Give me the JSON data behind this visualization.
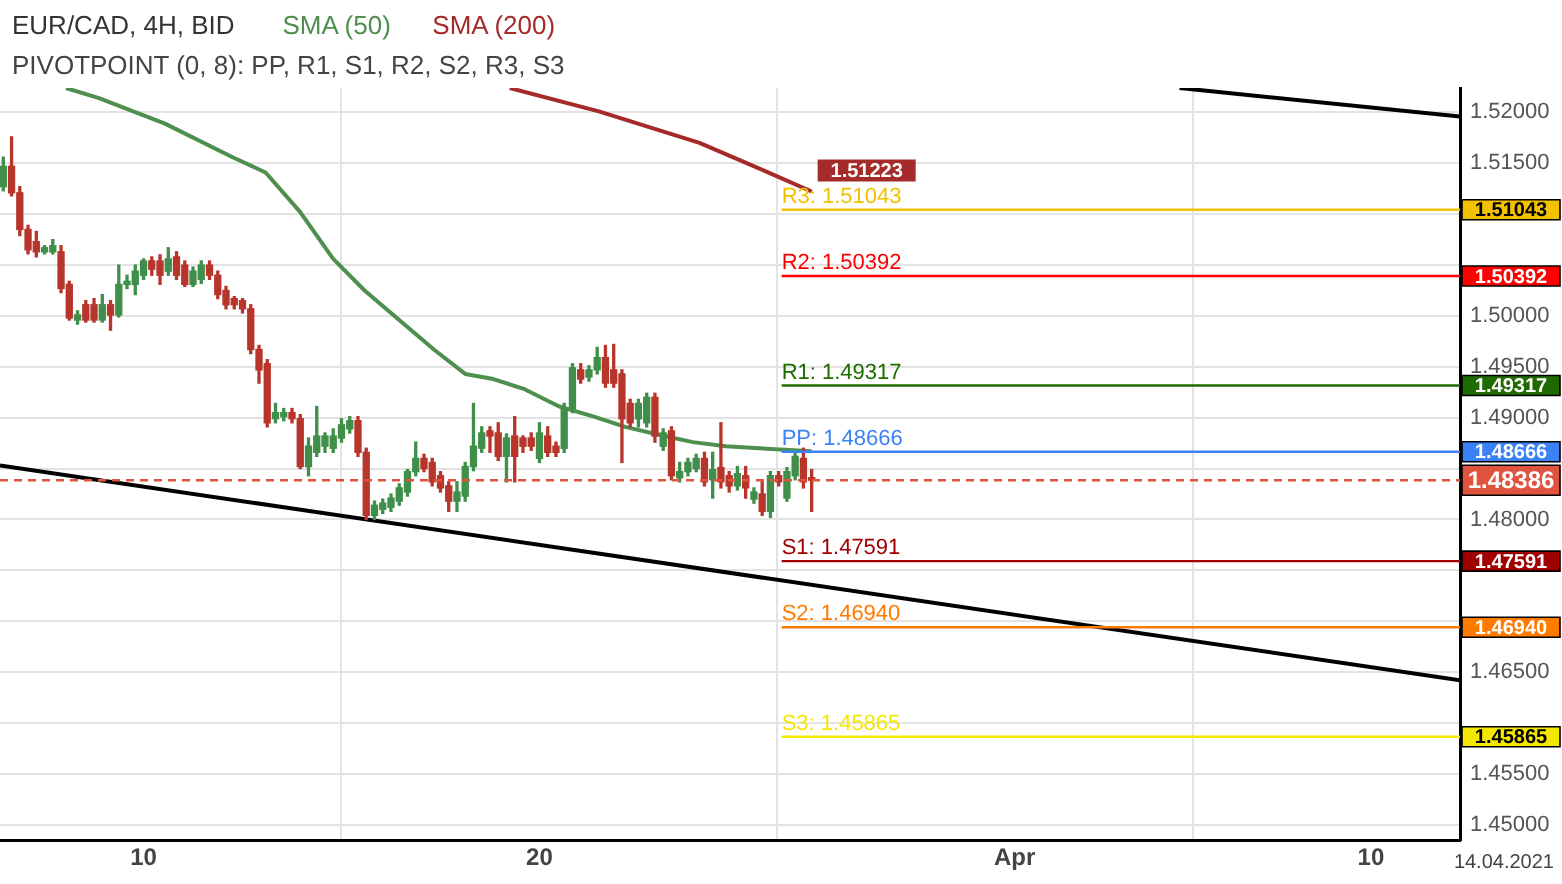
{
  "chart_data": {
    "type": "candlestick",
    "title": "EUR/CAD, 4H, BID",
    "subtitle": "PIVOTPOINT (0, 8): PP, R1, S1, R2, S2, R3, S3",
    "x": [
      "2021-03-06T11:00",
      "2021-03-06T16:00",
      "2021-03-06T21:00",
      "2021-03-07T02:00",
      "2021-03-07T07:00",
      "2021-03-07T12:00",
      "2021-03-07T17:00",
      "2021-03-07T22:00",
      "2021-03-08T03:00",
      "2021-03-08T08:00",
      "2021-03-08T13:00",
      "2021-03-08T18:00",
      "2021-03-08T23:00",
      "2021-03-09T04:00",
      "2021-03-09T09:00",
      "2021-03-09T14:00",
      "2021-03-09T19:00",
      "2021-03-10T00:00",
      "2021-03-10T05:00",
      "2021-03-10T10:00",
      "2021-03-10T15:00",
      "2021-03-10T20:00",
      "2021-03-11T01:00",
      "2021-03-11T06:00",
      "2021-03-11T11:00",
      "2021-03-11T16:00",
      "2021-03-11T21:00",
      "2021-03-12T02:00",
      "2021-03-12T07:00",
      "2021-03-12T12:00",
      "2021-03-12T17:00",
      "2021-03-12T22:00",
      "2021-03-13T03:00",
      "2021-03-13T08:00",
      "2021-03-13T13:00",
      "2021-03-13T18:00",
      "2021-03-13T23:00",
      "2021-03-14T04:00",
      "2021-03-14T09:00",
      "2021-03-14T14:00",
      "2021-03-14T19:00",
      "2021-03-15T00:00",
      "2021-03-15T05:00",
      "2021-03-15T10:00",
      "2021-03-15T15:00",
      "2021-03-15T20:00",
      "2021-03-16T01:00",
      "2021-03-16T06:00",
      "2021-03-16T11:00",
      "2021-03-16T16:00",
      "2021-03-16T21:00",
      "2021-03-17T02:00",
      "2021-03-17T07:00",
      "2021-03-17T12:00",
      "2021-03-17T17:00",
      "2021-03-17T22:00",
      "2021-03-18T03:00",
      "2021-03-18T08:00",
      "2021-03-18T13:00",
      "2021-03-18T18:00",
      "2021-03-18T23:00",
      "2021-03-19T04:00",
      "2021-03-19T09:00",
      "2021-03-19T14:00",
      "2021-03-19T19:00",
      "2021-03-20T00:00",
      "2021-03-20T05:00",
      "2021-03-20T10:00",
      "2021-03-20T15:00",
      "2021-03-20T20:00",
      "2021-03-21T01:00",
      "2021-03-21T06:00",
      "2021-03-21T11:00",
      "2021-03-21T16:00",
      "2021-03-21T21:00",
      "2021-03-22T02:00",
      "2021-03-22T07:00",
      "2021-03-22T12:00",
      "2021-03-22T17:00",
      "2021-03-22T22:00",
      "2021-03-23T03:00",
      "2021-03-23T08:00",
      "2021-03-23T13:00",
      "2021-03-23T18:00",
      "2021-03-23T23:00",
      "2021-03-24T04:00",
      "2021-03-24T09:00",
      "2021-03-24T14:00",
      "2021-03-24T19:00",
      "2021-03-25T00:00",
      "2021-03-25T05:00",
      "2021-03-25T10:00",
      "2021-03-25T15:00",
      "2021-03-25T20:00",
      "2021-03-26T01:00",
      "2021-03-26T06:00",
      "2021-03-26T11:00",
      "2021-03-26T16:00",
      "2021-03-26T21:00"
    ],
    "ohlc": [
      [
        1.5127,
        1.5156,
        1.5123,
        1.5147
      ],
      [
        1.5147,
        1.5176,
        1.5118,
        1.5121
      ],
      [
        1.5121,
        1.5127,
        1.5079,
        1.5085
      ],
      [
        1.5085,
        1.5089,
        1.5061,
        1.5065
      ],
      [
        1.5073,
        1.5083,
        1.5058,
        1.5063
      ],
      [
        1.5063,
        1.5069,
        1.5061,
        1.5067
      ],
      [
        1.5063,
        1.5075,
        1.5061,
        1.5069
      ],
      [
        1.5063,
        1.5069,
        1.5023,
        1.5027
      ],
      [
        1.5031,
        1.5034,
        1.4996,
        1.4998
      ],
      [
        1.4996,
        1.5005,
        1.4992,
        1.5001
      ],
      [
        1.5011,
        1.5015,
        1.4994,
        1.4996
      ],
      [
        1.5011,
        1.5017,
        1.4994,
        1.4996
      ],
      [
        1.4996,
        1.5021,
        1.4994,
        1.5011
      ],
      [
        1.5011,
        1.5015,
        1.4986,
        1.5001
      ],
      [
        1.5001,
        1.505,
        1.4999,
        1.5031
      ],
      [
        1.5031,
        1.504,
        1.5027,
        1.5034
      ],
      [
        1.5031,
        1.505,
        1.5021,
        1.5044
      ],
      [
        1.504,
        1.5056,
        1.5036,
        1.5054
      ],
      [
        1.5054,
        1.5058,
        1.504,
        1.5046
      ],
      [
        1.5054,
        1.506,
        1.5031,
        1.504
      ],
      [
        1.5044,
        1.5067,
        1.504,
        1.5056
      ],
      [
        1.5058,
        1.5063,
        1.5036,
        1.504
      ],
      [
        1.505,
        1.5054,
        1.5029,
        1.5031
      ],
      [
        1.5031,
        1.5048,
        1.5029,
        1.5044
      ],
      [
        1.5036,
        1.5054,
        1.5032,
        1.505
      ],
      [
        1.505,
        1.5054,
        1.5036,
        1.504
      ],
      [
        1.504,
        1.5044,
        1.5017,
        1.5021
      ],
      [
        1.5025,
        1.5029,
        1.5007,
        1.5011
      ],
      [
        1.5017,
        1.5019,
        1.5007,
        1.5011
      ],
      [
        1.5015,
        1.5017,
        1.5003,
        1.5007
      ],
      [
        1.5007,
        1.5011,
        1.4963,
        1.4967
      ],
      [
        1.4967,
        1.4971,
        1.4934,
        1.4947
      ],
      [
        1.4953,
        1.4957,
        1.4891,
        1.4895
      ],
      [
        1.4899,
        1.4914,
        1.4895,
        1.4905
      ],
      [
        1.4901,
        1.4909,
        1.4897,
        1.4905
      ],
      [
        1.4905,
        1.4909,
        1.4895,
        1.4899
      ],
      [
        1.4899,
        1.4903,
        1.485,
        1.4852
      ],
      [
        1.4852,
        1.488,
        1.4843,
        1.4872
      ],
      [
        1.4866,
        1.4911,
        1.4862,
        1.4882
      ],
      [
        1.4872,
        1.4885,
        1.4866,
        1.4882
      ],
      [
        1.487,
        1.4889,
        1.4866,
        1.4882
      ],
      [
        1.488,
        1.4899,
        1.4876,
        1.4893
      ],
      [
        1.4889,
        1.4901,
        1.4885,
        1.4897
      ],
      [
        1.4897,
        1.4901,
        1.4862,
        1.4866
      ],
      [
        1.4866,
        1.487,
        1.48,
        1.4804
      ],
      [
        1.4804,
        1.4818,
        1.48,
        1.4814
      ],
      [
        1.481,
        1.482,
        1.4806,
        1.4816
      ],
      [
        1.4812,
        1.4825,
        1.4808,
        1.4821
      ],
      [
        1.4818,
        1.4835,
        1.4814,
        1.4831
      ],
      [
        1.4827,
        1.4849,
        1.4823,
        1.4847
      ],
      [
        1.4847,
        1.4876,
        1.4843,
        1.486
      ],
      [
        1.486,
        1.4864,
        1.4847,
        1.485
      ],
      [
        1.4856,
        1.486,
        1.4833,
        1.4837
      ],
      [
        1.4843,
        1.4847,
        1.4827,
        1.4831
      ],
      [
        1.4833,
        1.4837,
        1.4808,
        1.4818
      ],
      [
        1.4818,
        1.4837,
        1.4808,
        1.4827
      ],
      [
        1.4823,
        1.4856,
        1.4818,
        1.4852
      ],
      [
        1.4852,
        1.4914,
        1.4848,
        1.4872
      ],
      [
        1.487,
        1.4891,
        1.4866,
        1.4885
      ],
      [
        1.4887,
        1.4891,
        1.4866,
        1.4882
      ],
      [
        1.4885,
        1.4895,
        1.4858,
        1.4862
      ],
      [
        1.4862,
        1.4884,
        1.4837,
        1.488
      ],
      [
        1.4882,
        1.4901,
        1.4837,
        1.4862
      ],
      [
        1.488,
        1.4882,
        1.4866,
        1.4872
      ],
      [
        1.488,
        1.4885,
        1.4868,
        1.4872
      ],
      [
        1.486,
        1.4895,
        1.4856,
        1.4885
      ],
      [
        1.4882,
        1.4891,
        1.4862,
        1.4866
      ],
      [
        1.4872,
        1.4876,
        1.4862,
        1.4866
      ],
      [
        1.487,
        1.4914,
        1.4866,
        1.4909
      ],
      [
        1.4909,
        1.4953,
        1.4905,
        1.4949
      ],
      [
        1.4947,
        1.4953,
        1.4934,
        1.4938
      ],
      [
        1.494,
        1.4951,
        1.4936,
        1.4947
      ],
      [
        1.4947,
        1.4969,
        1.4943,
        1.4959
      ],
      [
        1.4959,
        1.4971,
        1.493,
        1.4934
      ],
      [
        1.4947,
        1.4972,
        1.493,
        1.4934
      ],
      [
        1.4943,
        1.4947,
        1.4856,
        1.4899
      ],
      [
        1.4914,
        1.4918,
        1.4891,
        1.4895
      ],
      [
        1.4899,
        1.4918,
        1.4891,
        1.4914
      ],
      [
        1.4895,
        1.4924,
        1.4891,
        1.492
      ],
      [
        1.492,
        1.4924,
        1.4876,
        1.4882
      ],
      [
        1.4872,
        1.4889,
        1.4868,
        1.4885
      ],
      [
        1.4887,
        1.4891,
        1.4839,
        1.4843
      ],
      [
        1.4841,
        1.4856,
        1.4837,
        1.4847
      ],
      [
        1.4847,
        1.486,
        1.4843,
        1.4856
      ],
      [
        1.485,
        1.4864,
        1.4847,
        1.486
      ],
      [
        1.486,
        1.4866,
        1.4833,
        1.4837
      ],
      [
        1.4839,
        1.4866,
        1.4821,
        1.4849
      ],
      [
        1.4851,
        1.4895,
        1.4831,
        1.4837
      ],
      [
        1.4843,
        1.4847,
        1.4827,
        1.4833
      ],
      [
        1.4833,
        1.4852,
        1.4829,
        1.4845
      ],
      [
        1.4843,
        1.4852,
        1.4821,
        1.4831
      ],
      [
        1.482,
        1.4831,
        1.4816,
        1.4827
      ],
      [
        1.4825,
        1.4837,
        1.4804,
        1.4808
      ],
      [
        1.4808,
        1.4847,
        1.4802,
        1.4843
      ],
      [
        1.4843,
        1.4847,
        1.4833,
        1.4837
      ],
      [
        1.4821,
        1.4851,
        1.4818,
        1.4847
      ],
      [
        1.4843,
        1.4866,
        1.4839,
        1.4862
      ],
      [
        1.486,
        1.487,
        1.4831,
        1.4837
      ],
      [
        1.4841,
        1.4849,
        1.4808,
        1.48386
      ]
    ],
    "series": [
      {
        "name": "SMA (50)",
        "type": "line",
        "color": "#4e8f4e",
        "x": [
          "2021-03-08T01:00",
          "2021-03-08T21:00",
          "2021-03-10T13:00",
          "2021-03-12T06:00",
          "2021-03-13T02:00",
          "2021-03-13T23:00",
          "2021-03-14T19:00",
          "2021-03-15T14:00",
          "2021-03-16T11:00",
          "2021-03-17T08:00",
          "2021-03-18T03:00",
          "2021-03-18T20:00",
          "2021-03-19T15:00",
          "2021-03-20T12:00",
          "2021-03-21T09:00",
          "2021-03-22T04:00",
          "2021-03-23T01:00",
          "2021-03-23T21:00",
          "2021-03-24T17:00",
          "2021-03-25T13:00",
          "2021-03-26T21:00"
        ],
        "values": [
          1.5224,
          1.5214,
          1.5189,
          1.5156,
          1.5141,
          1.5102,
          1.5056,
          1.5025,
          1.4996,
          1.4967,
          1.4943,
          1.4938,
          1.4928,
          1.4911,
          1.4901,
          1.4891,
          1.4883,
          1.4876,
          1.4872,
          1.487,
          1.4867
        ]
      },
      {
        "name": "SMA (200)",
        "type": "line",
        "color": "#a52a2a",
        "x": [
          "2021-03-19T06:00",
          "2021-03-21T12:00",
          "2021-03-24T01:00",
          "2021-03-25T13:00",
          "2021-03-26T21:00"
        ],
        "values": [
          1.5224,
          1.5201,
          1.517,
          1.5145,
          1.51223
        ],
        "value_labels": [
          null,
          null,
          null,
          null,
          "1.51223"
        ]
      },
      {
        "type": "line",
        "color": "#000000",
        "x": [
          "2021-04-05T04:00",
          "2021-04-12T06:00"
        ],
        "values": [
          1.5224,
          1.5196
        ]
      },
      {
        "type": "line",
        "color": "#000000",
        "x": [
          "2021-03-06T09:00",
          "2021-04-12T06:00"
        ],
        "values": [
          1.4853,
          1.4642
        ]
      }
    ],
    "xlim": [
      "2021-03-06T09:00",
      "2021-04-12T06:00"
    ],
    "ylim": [
      1.4485,
      1.5224
    ],
    "xticks": [
      {
        "value": "2021-03-10",
        "label": "10"
      },
      {
        "value": "2021-03-20",
        "label": "20"
      },
      {
        "value": "2021-04-01",
        "label": "Apr"
      },
      {
        "value": "2021-04-10",
        "label": "10"
      }
    ],
    "yticks": [
      {
        "value": 1.45,
        "label": "1.45000"
      },
      {
        "value": 1.455,
        "label": "1.45500"
      },
      {
        "value": 1.46,
        "label": null
      },
      {
        "value": 1.465,
        "label": "1.46500"
      },
      {
        "value": 1.47,
        "label": null
      },
      {
        "value": 1.475,
        "label": null
      },
      {
        "value": 1.48,
        "label": "1.48000"
      },
      {
        "value": 1.485,
        "label": null
      },
      {
        "value": 1.49,
        "label": "1.49000"
      },
      {
        "value": 1.495,
        "label": "1.49500"
      },
      {
        "value": 1.5,
        "label": "1.50000"
      },
      {
        "value": 1.505,
        "label": null
      },
      {
        "value": 1.51,
        "label": null
      },
      {
        "value": 1.515,
        "label": "1.51500"
      },
      {
        "value": 1.52,
        "label": "1.52000"
      }
    ],
    "ref_lines": [
      {
        "axis": "y",
        "value": 1.51043,
        "label": "R3: 1.51043",
        "color": "#f2c200"
      },
      {
        "axis": "y",
        "value": 1.50392,
        "label": "R2: 1.50392",
        "color": "#ff0000"
      },
      {
        "axis": "y",
        "value": 1.49317,
        "label": "R1: 1.49317",
        "color": "#1f6b00"
      },
      {
        "axis": "y",
        "value": 1.48666,
        "label": "PP: 1.48666",
        "color": "#3b82f6"
      },
      {
        "axis": "y",
        "value": 1.48386,
        "color": "#e0533f",
        "line_style": "dashed"
      },
      {
        "axis": "y",
        "value": 1.47591,
        "label": "S1: 1.47591",
        "color": "#a00000"
      },
      {
        "axis": "y",
        "value": 1.4694,
        "label": "S2: 1.46940",
        "color": "#ff7b00"
      },
      {
        "axis": "y",
        "value": 1.45865,
        "label": "S3: 1.45865",
        "color": "#f5e800"
      }
    ],
    "annotations": [
      {
        "text": "1.51043",
        "x": "2021-04-12T06:00",
        "y": 1.51043
      },
      {
        "text": "1.50392",
        "x": "2021-04-12T06:00",
        "y": 1.50392
      },
      {
        "text": "1.49317",
        "x": "2021-04-12T06:00",
        "y": 1.49317
      },
      {
        "text": "1.48666",
        "x": "2021-04-12T06:00",
        "y": 1.48666
      },
      {
        "text": "1.48386",
        "x": "2021-04-12T06:00",
        "y": 1.48386
      },
      {
        "text": "1.47591",
        "x": "2021-04-12T06:00",
        "y": 1.47591
      },
      {
        "text": "1.46940",
        "x": "2021-04-12T06:00",
        "y": 1.4694
      },
      {
        "text": "1.45865",
        "x": "2021-04-12T06:00",
        "y": 1.45865
      },
      "14.04.2021"
    ],
    "grid": true,
    "legend": "top left"
  }
}
